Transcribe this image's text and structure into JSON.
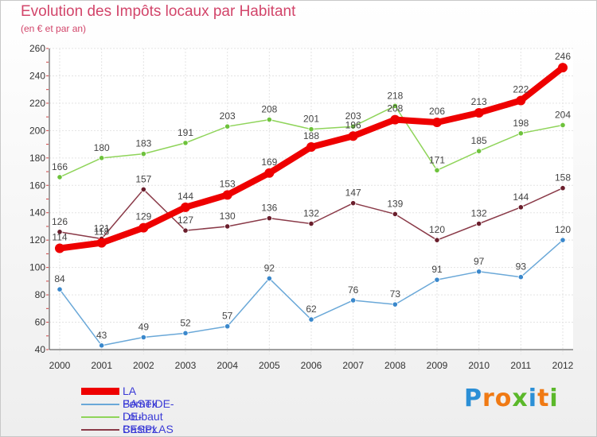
{
  "header": {
    "title": "Evolution des Impôts locaux par Habitant",
    "subtitle": "(en € et par an)"
  },
  "brand": {
    "letters": [
      "P",
      "r",
      "o",
      "x",
      "i",
      "t",
      "i"
    ],
    "colors": [
      "#2b8fd6",
      "#f07a14",
      "#f07a14",
      "#5bb82a",
      "#2b8fd6",
      "#f07a14",
      "#5bb82a"
    ]
  },
  "chart_data": {
    "type": "line",
    "x": [
      "2000",
      "2001",
      "2002",
      "2003",
      "2004",
      "2005",
      "2006",
      "2007",
      "2008",
      "2009",
      "2010",
      "2011",
      "2012"
    ],
    "ylim": [
      40,
      260
    ],
    "yticks": [
      40,
      60,
      80,
      100,
      120,
      140,
      160,
      180,
      200,
      220,
      240,
      260
    ],
    "grid": true,
    "legend_position": "bottom-left",
    "series": [
      {
        "name": "Loubaut",
        "color": "#8fd45a",
        "marker": "#6ec23c",
        "values": [
          166,
          180,
          183,
          191,
          203,
          208,
          201,
          203,
          218,
          171,
          185,
          198,
          204
        ],
        "labels": [
          "166",
          "180",
          "183",
          "191",
          "203",
          "208",
          "201",
          "203",
          "218",
          "171",
          "185",
          "198",
          "204"
        ]
      },
      {
        "name": "Castex",
        "color": "#8a3a48",
        "marker": "#6a1e2c",
        "values": [
          126,
          121,
          157,
          127,
          130,
          136,
          132,
          147,
          139,
          120,
          132,
          144,
          158
        ],
        "labels": [
          "126",
          "121",
          "157",
          "127",
          "130",
          "136",
          "132",
          "147",
          "139",
          "120",
          "132",
          "144",
          "158"
        ]
      },
      {
        "name": "Fornex",
        "color": "#6aa8d8",
        "marker": "#3a88cc",
        "values": [
          84,
          43,
          49,
          52,
          57,
          92,
          62,
          76,
          73,
          91,
          97,
          93,
          120
        ],
        "labels": [
          "84",
          "43",
          "49",
          "52",
          "57",
          "92",
          "62",
          "76",
          "73",
          "91",
          "97",
          "93",
          "120"
        ]
      },
      {
        "name": "LA BASTIDE-DE-BESPLAS",
        "color": "#ee0000",
        "marker": "#ee0000",
        "values": [
          114,
          118,
          129,
          144,
          153,
          169,
          188,
          196,
          208,
          206,
          213,
          222,
          246
        ],
        "labels": [
          "114",
          "118",
          "129",
          "144",
          "153",
          "169",
          "188",
          "196",
          "208",
          "206",
          "213",
          "222",
          "246"
        ]
      }
    ]
  },
  "legend": {
    "items": [
      {
        "name": "LA BASTIDE-DE-BESPLAS",
        "color": "#ee0000",
        "thickness": 9
      },
      {
        "name": "Fornex",
        "color": "#6aa8d8",
        "thickness": 2
      },
      {
        "name": "Loubaut",
        "color": "#8fd45a",
        "thickness": 2
      },
      {
        "name": "Castex",
        "color": "#8a3a48",
        "thickness": 2
      }
    ]
  }
}
